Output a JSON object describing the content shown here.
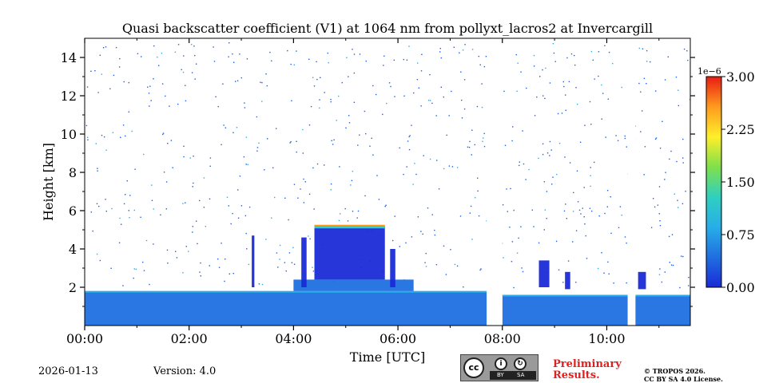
{
  "chart_data": {
    "type": "heatmap",
    "title": "Quasi backscatter coefficient (V1) at 1064 nm from pollyxt_lacros2 at Invercargill",
    "xlabel": "Time [UTC]",
    "ylabel": "Height [km]",
    "xlim_hours": [
      0,
      11.6
    ],
    "ylim_km": [
      0,
      15
    ],
    "x_ticks": [
      {
        "value": 0,
        "label": "00:00"
      },
      {
        "value": 2,
        "label": "02:00"
      },
      {
        "value": 4,
        "label": "04:00"
      },
      {
        "value": 6,
        "label": "06:00"
      },
      {
        "value": 8,
        "label": "08:00"
      },
      {
        "value": 10,
        "label": "10:00"
      }
    ],
    "y_ticks": [
      {
        "value": 2,
        "label": "2"
      },
      {
        "value": 4,
        "label": "4"
      },
      {
        "value": 6,
        "label": "6"
      },
      {
        "value": 8,
        "label": "8"
      },
      {
        "value": 10,
        "label": "10"
      },
      {
        "value": 12,
        "label": "12"
      },
      {
        "value": 14,
        "label": "14"
      }
    ],
    "colorbar": {
      "scale_label": "1e−6",
      "range": [
        0,
        3.0
      ],
      "ticks": [
        {
          "value": 0,
          "label": "0.00"
        },
        {
          "value": 0.75,
          "label": "0.75"
        },
        {
          "value": 1.5,
          "label": "1.50"
        },
        {
          "value": 2.25,
          "label": "2.25"
        },
        {
          "value": 3.0,
          "label": "3.00"
        }
      ],
      "colormap": [
        "#1a2bd6",
        "#1f6fe0",
        "#27aee8",
        "#2fd0c0",
        "#7fe04a",
        "#ffef2a",
        "#ff9a1e",
        "#e81c12"
      ]
    },
    "regions": [
      {
        "name": "boundary layer",
        "t0": 0,
        "t1": 7.7,
        "h0": 0,
        "h1": 1.8,
        "value": 0.3
      },
      {
        "name": "boundary layer",
        "t0": 8.0,
        "t1": 11.6,
        "h0": 0,
        "h1": 1.6,
        "value": 0.3
      },
      {
        "name": "lower cloud",
        "t0": 4.0,
        "t1": 6.3,
        "h0": 1.8,
        "h1": 2.4,
        "value": 0.25
      },
      {
        "name": "cloud layer",
        "t0": 4.4,
        "t1": 5.75,
        "h0": 2.4,
        "h1": 5.2,
        "value": 0.15
      },
      {
        "name": "cloud column",
        "t0": 3.2,
        "t1": 3.25,
        "h0": 2.0,
        "h1": 4.7,
        "value": 0.1
      },
      {
        "name": "cloud column",
        "t0": 4.15,
        "t1": 4.25,
        "h0": 2.0,
        "h1": 4.6,
        "value": 0.1
      },
      {
        "name": "cloud column",
        "t0": 5.85,
        "t1": 5.95,
        "h0": 2.0,
        "h1": 4.0,
        "value": 0.1
      },
      {
        "name": "cloud patch",
        "t0": 8.7,
        "t1": 8.9,
        "h0": 2.0,
        "h1": 3.4,
        "value": 0.1
      },
      {
        "name": "cloud patch",
        "t0": 9.2,
        "t1": 9.3,
        "h0": 1.9,
        "h1": 2.8,
        "value": 0.1
      },
      {
        "name": "cloud patch",
        "t0": 10.6,
        "t1": 10.75,
        "h0": 1.9,
        "h1": 2.8,
        "value": 0.1
      }
    ],
    "gaps": [
      {
        "t0": 7.7,
        "t1": 8.0
      },
      {
        "t0": 10.4,
        "t1": 10.55
      }
    ]
  },
  "footer": {
    "date": "2026-01-13",
    "version": "Version: 4.0",
    "preliminary_line1": "Preliminary",
    "preliminary_line2": "Results.",
    "copyright_line1": "© TROPOS 2026.",
    "copyright_line2": "CC BY SA 4.0 License.",
    "license_badge": {
      "cc": "cc",
      "by": "BY",
      "sa": "SA"
    }
  },
  "colors": {
    "preliminary": "#e02020"
  }
}
